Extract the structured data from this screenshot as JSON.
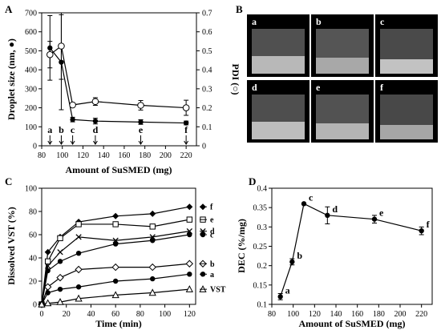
{
  "panel_labels": {
    "a": "A",
    "b": "B",
    "c": "C",
    "d": "D"
  },
  "colors": {
    "ink": "#000000",
    "open_fill": "#ffffff",
    "vial_bg": "#000000",
    "vial_label": "#ffffff"
  },
  "chart_data": [
    {
      "panel": "A",
      "type": "scatter",
      "xlabel": "Amount of SuSMED (mg)",
      "ylabel": "Droplet size (nm, ●)",
      "y2label": "PDI (○)",
      "xlim": [
        80,
        230
      ],
      "xticks": [
        "80",
        "100",
        "120",
        "140",
        "160",
        "180",
        "200",
        "220"
      ],
      "ylim": [
        0,
        700
      ],
      "yticks": [
        "0",
        "100",
        "200",
        "300",
        "400",
        "500",
        "600",
        "700"
      ],
      "y2lim": [
        0,
        0.7
      ],
      "y2ticks": [
        "0",
        "0.1",
        "0.2",
        "0.3",
        "0.4",
        "0.5",
        "0.6",
        "0.7"
      ],
      "x": [
        88,
        99,
        110,
        132,
        176,
        220
      ],
      "series": [
        {
          "marker": "filled-circle",
          "axis": "left",
          "values": [
            515,
            440,
            138,
            130,
            125,
            120
          ],
          "err": [
            170,
            250,
            12,
            15,
            12,
            10
          ]
        },
        {
          "marker": "open-circle",
          "axis": "right",
          "values": [
            0.48,
            0.525,
            0.215,
            0.233,
            0.213,
            0.2
          ],
          "err": [
            0.07,
            0.175,
            0.01,
            0.02,
            0.025,
            0.04
          ]
        }
      ],
      "annotations": [
        "a",
        "b",
        "c",
        "d",
        "e",
        "f"
      ]
    },
    {
      "panel": "C",
      "type": "line",
      "xlabel": "Time (min)",
      "ylabel": "Dissolved VST (%)",
      "xlim": [
        0,
        125
      ],
      "xticks": [
        "0",
        "20",
        "40",
        "60",
        "80",
        "100",
        "120"
      ],
      "ylim": [
        0,
        100
      ],
      "yticks": [
        "0",
        "20",
        "40",
        "60",
        "80",
        "100"
      ],
      "x": [
        0,
        5,
        15,
        30,
        60,
        90,
        120
      ],
      "series": [
        {
          "name": "f",
          "marker": "filled-diamond",
          "values": [
            0,
            45,
            58,
            71,
            76,
            78,
            84
          ]
        },
        {
          "name": "e",
          "marker": "open-square",
          "values": [
            0,
            37,
            57,
            69,
            69,
            67,
            73
          ]
        },
        {
          "name": "d",
          "marker": "x-cross",
          "values": [
            0,
            33,
            45,
            58,
            55,
            58,
            63
          ]
        },
        {
          "name": "c",
          "marker": "filled-circle",
          "values": [
            0,
            29,
            37,
            44,
            52,
            55,
            60
          ]
        },
        {
          "name": "b",
          "marker": "open-diamond",
          "values": [
            0,
            15,
            23,
            30,
            32,
            32,
            35
          ]
        },
        {
          "name": "a",
          "marker": "filled-circle",
          "values": [
            0,
            10,
            13,
            15,
            20,
            22,
            26
          ]
        },
        {
          "name": "VST",
          "marker": "open-triangle",
          "values": [
            0,
            1,
            2,
            5,
            8,
            10,
            13
          ]
        }
      ]
    },
    {
      "panel": "D",
      "type": "line",
      "xlabel": "Amount of SuSMED (mg)",
      "ylabel": "DEC (%/mg)",
      "xlim": [
        80,
        230
      ],
      "xticks": [
        "80",
        "100",
        "120",
        "140",
        "160",
        "180",
        "200",
        "220"
      ],
      "ylim": [
        0.1,
        0.4
      ],
      "yticks": [
        "0.1",
        "0.15",
        "0.2",
        "0.25",
        "0.3",
        "0.35",
        "0.4"
      ],
      "x": [
        88,
        99,
        110,
        132,
        176,
        220
      ],
      "values": [
        0.12,
        0.21,
        0.36,
        0.33,
        0.32,
        0.29
      ],
      "err": [
        0.008,
        0.008,
        0,
        0.022,
        0.01,
        0.01
      ],
      "annotations": [
        "a",
        "b",
        "c",
        "d",
        "e",
        "f"
      ]
    }
  ],
  "photo_panel": {
    "vial_labels": [
      "a",
      "b",
      "c",
      "d",
      "e",
      "f"
    ]
  }
}
